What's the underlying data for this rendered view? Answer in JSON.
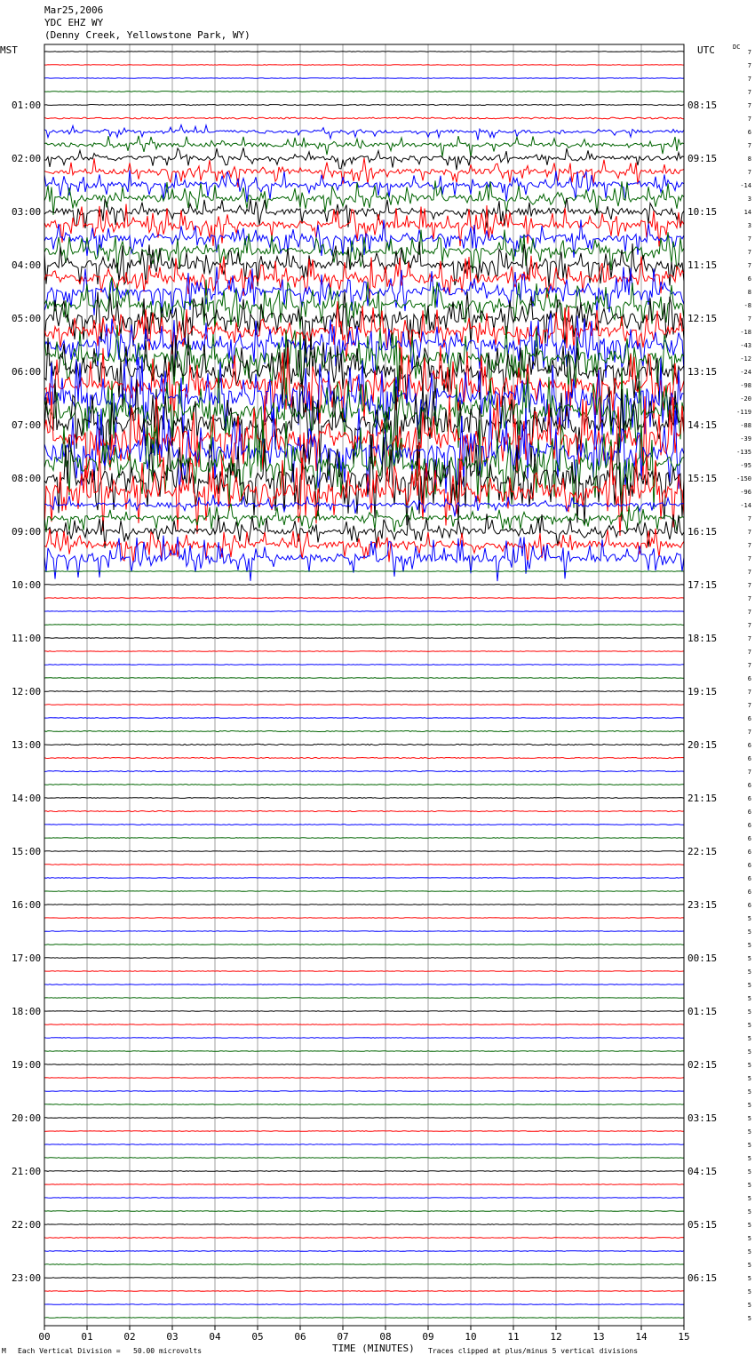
{
  "header": {
    "line1": "Mar25,2006",
    "line2": "YDC EHZ WY",
    "line3": "(Denny Creek, Yellowstone Park, WY)"
  },
  "axes": {
    "left_label": "MST",
    "right_label": "UTC",
    "dc_label": "DC"
  },
  "footer": {
    "scale_note": "Each Vertical Division =   50.00 microvolts",
    "clip_note": "Traces clipped at plus/minus 5 vertical divisions",
    "corner_mark": "M"
  },
  "colors": {
    "trace_cycle": [
      "#000000",
      "#ff0000",
      "#0000ff",
      "#006400"
    ],
    "grid": "#a0a0a0",
    "frame": "#000000"
  },
  "chart_data": {
    "type": "line",
    "xlabel": "TIME (MINUTES)",
    "ylabel": "",
    "xlim": [
      0,
      15
    ],
    "x_ticks": [
      "00",
      "01",
      "02",
      "03",
      "04",
      "05",
      "06",
      "07",
      "08",
      "09",
      "10",
      "11",
      "12",
      "13",
      "14",
      "15"
    ],
    "trace_interval_minutes": 15,
    "left_time_labels": [
      "01:00",
      "02:00",
      "03:00",
      "04:00",
      "05:00",
      "06:00",
      "07:00",
      "08:00",
      "09:00",
      "10:00",
      "11:00",
      "12:00",
      "13:00",
      "14:00",
      "15:00",
      "16:00",
      "17:00",
      "18:00",
      "19:00",
      "20:00",
      "21:00",
      "22:00",
      "23:00"
    ],
    "right_time_labels": [
      "08:15",
      "09:15",
      "10:15",
      "11:15",
      "12:15",
      "13:15",
      "14:15",
      "15:15",
      "16:15",
      "17:15",
      "18:15",
      "19:15",
      "20:15",
      "21:15",
      "22:15",
      "23:15",
      "00:15",
      "01:15",
      "02:15",
      "03:15",
      "04:15",
      "05:15",
      "06:15"
    ],
    "dc_offsets": [
      "7",
      "7",
      "7",
      "7",
      "7",
      "7",
      "6",
      "7",
      "8",
      "7",
      "-14",
      "3",
      "14",
      "3",
      "7",
      "7",
      "7",
      "6",
      "8",
      "-8",
      "7",
      "-18",
      "-43",
      "-12",
      "-24",
      "-98",
      "-20",
      "-119",
      "-88",
      "-39",
      "-135",
      "-95",
      "-150",
      "-96",
      "-14",
      "7",
      "7",
      "7",
      "7",
      "7",
      "7",
      "7",
      "7",
      "7",
      "7",
      "7",
      "7",
      "6",
      "7",
      "7",
      "6",
      "7",
      "6",
      "6",
      "7",
      "6",
      "6",
      "6",
      "6",
      "6",
      "6",
      "6",
      "6",
      "6",
      "6",
      "5",
      "5",
      "5",
      "5",
      "5",
      "5",
      "5",
      "5",
      "5",
      "5",
      "5",
      "5",
      "5",
      "5",
      "5",
      "5",
      "5",
      "5",
      "5",
      "5",
      "5",
      "5",
      "5",
      "5",
      "5",
      "5",
      "5",
      "5",
      "5",
      "5",
      "5"
    ],
    "activity_levels": [
      0.3,
      0.3,
      0.3,
      0.4,
      0.5,
      0.8,
      1.5,
      2.0,
      2.2,
      2.5,
      2.8,
      3.0,
      3.2,
      3.5,
      3.5,
      3.8,
      4.0,
      4.0,
      4.2,
      4.5,
      4.8,
      5.0,
      5.5,
      6.0,
      6.5,
      7.0,
      7.5,
      8.0,
      8.0,
      8.0,
      8.0,
      8.0,
      8.0,
      7.5,
      2.0,
      2.5,
      3.0,
      3.5,
      3.8,
      0.3,
      0.3,
      0.3,
      0.3,
      0.4,
      0.3,
      0.3,
      0.3,
      0.3,
      0.4,
      0.3,
      0.3,
      0.5,
      0.6,
      0.5,
      0.5,
      0.4,
      0.4,
      0.5,
      0.4,
      0.3,
      0.3,
      0.3,
      0.3,
      0.3,
      0.3,
      0.3,
      0.3,
      0.3,
      0.3,
      0.3,
      0.3,
      0.3,
      0.3,
      0.3,
      0.3,
      0.3,
      0.3,
      0.3,
      0.3,
      0.3,
      0.3,
      0.3,
      0.3,
      0.3,
      0.3,
      0.3,
      0.3,
      0.3,
      0.3,
      0.4,
      0.3,
      0.3,
      0.3,
      0.3,
      0.3,
      0.3
    ]
  }
}
